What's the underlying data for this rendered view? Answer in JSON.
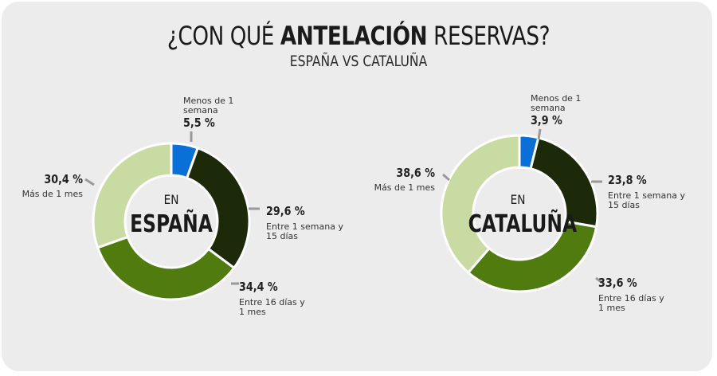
{
  "title": {
    "pre": "¿CON QUÉ ",
    "bold": "ANTELACIÓN",
    "post": " RESERVAS?"
  },
  "subtitle": "ESPAÑA VS CATALUÑA",
  "colors": {
    "week": "#0a6fd6",
    "onefifteen": "#1c2a0a",
    "sixteen": "#4f7b0f",
    "month": "#c8dba2",
    "leader": "#999999"
  },
  "chart_data": [
    {
      "type": "pie",
      "name": "España",
      "center_top": "EN",
      "center_bottom": "ESPAÑA",
      "slices": [
        {
          "key": "week",
          "pct": "5,5 %",
          "value": 5.5,
          "label": "Menos de 1 semana"
        },
        {
          "key": "onefifteen",
          "pct": "29,6 %",
          "value": 29.6,
          "label": "Entre 1 semana y 15 días"
        },
        {
          "key": "sixteen",
          "pct": "34,4 %",
          "value": 34.4,
          "label": "Entre 16 días y 1 mes"
        },
        {
          "key": "month",
          "pct": "30,4 %",
          "value": 30.4,
          "label": "Más de 1 mes"
        }
      ]
    },
    {
      "type": "pie",
      "name": "Cataluña",
      "center_top": "EN",
      "center_bottom": "CATALUÑA",
      "slices": [
        {
          "key": "week",
          "pct": "3,9 %",
          "value": 3.9,
          "label": "Menos de 1 semana"
        },
        {
          "key": "onefifteen",
          "pct": "23,8 %",
          "value": 23.8,
          "label": "Entre 1 semana y 15 días"
        },
        {
          "key": "sixteen",
          "pct": "33,6 %",
          "value": 33.6,
          "label": "Entre 16 días y 1 mes"
        },
        {
          "key": "month",
          "pct": "38,6 %",
          "value": 38.6,
          "label": "Más de 1 mes"
        }
      ]
    }
  ]
}
